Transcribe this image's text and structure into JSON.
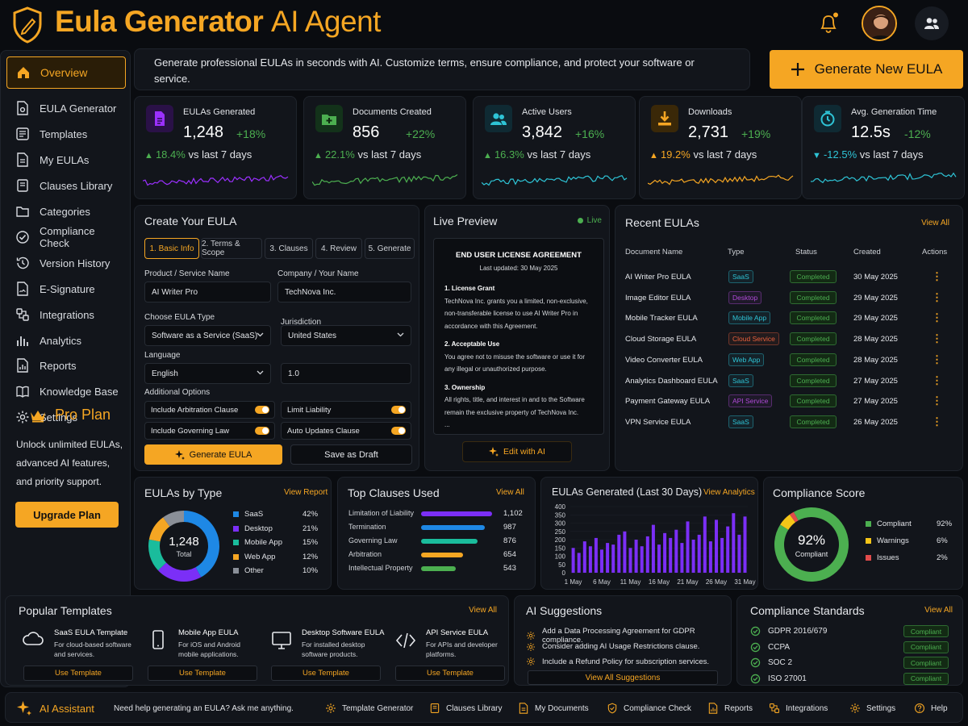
{
  "header": {
    "title_bold": "Eula Generator",
    "title_light": "AI Agent",
    "bell_icon": "bell-icon",
    "users_icon": "users-icon"
  },
  "sidebar": {
    "items": [
      {
        "label": "Overview",
        "icon": "home-icon"
      },
      {
        "label": "EULA Generator",
        "icon": "document-gear-icon"
      },
      {
        "label": "Templates",
        "icon": "templates-icon"
      },
      {
        "label": "My EULAs",
        "icon": "file-icon"
      },
      {
        "label": "Clauses Library",
        "icon": "book-icon"
      },
      {
        "label": "Categories",
        "icon": "folder-icon"
      },
      {
        "label": "Compliance Check",
        "icon": "check-circle-icon"
      },
      {
        "label": "Version History",
        "icon": "history-icon"
      },
      {
        "label": "E-Signature",
        "icon": "signature-icon"
      },
      {
        "label": "Integrations",
        "icon": "integrations-icon"
      },
      {
        "label": "Analytics",
        "icon": "analytics-icon"
      },
      {
        "label": "Reports",
        "icon": "reports-icon"
      },
      {
        "label": "Knowledge Base",
        "icon": "knowledge-icon"
      },
      {
        "label": "Settings",
        "icon": "gear-icon"
      }
    ],
    "pro_plan": {
      "title": "Pro Plan",
      "description": "Unlock unlimited EULAs, advanced AI features, and priority support.",
      "button": "Upgrade Plan"
    }
  },
  "intro": {
    "text": "Generate professional EULAs in seconds with AI. Customize terms, ensure compliance, and protect your software or service.",
    "generate_button": "Generate New EULA"
  },
  "stats": [
    {
      "label": "EULAs Generated",
      "value": "1,248",
      "change": "+18%",
      "trend_pct": "18.4%",
      "trend_text": "vs last 7 days",
      "trend_dir": "up",
      "color": "#9b30ff"
    },
    {
      "label": "Documents Created",
      "value": "856",
      "change": "+22%",
      "trend_pct": "22.1%",
      "trend_text": "vs last 7 days",
      "trend_dir": "up",
      "color": "#4caf50"
    },
    {
      "label": "Active Users",
      "value": "3,842",
      "change": "+16%",
      "trend_pct": "16.3%",
      "trend_text": "vs last 7 days",
      "trend_dir": "up",
      "color": "#2ec4d6"
    },
    {
      "label": "Downloads",
      "value": "2,731",
      "change": "+19%",
      "trend_pct": "19.2%",
      "trend_text": "vs last 7 days",
      "trend_dir": "up",
      "color": "#f5a623"
    },
    {
      "label": "Avg. Generation Time",
      "value": "12.5s",
      "change": "-12%",
      "trend_pct": "-12.5%",
      "trend_text": "vs last 7 days",
      "trend_dir": "down",
      "color": "#2ec4d6"
    }
  ],
  "create": {
    "title": "Create Your EULA",
    "tabs": [
      "1. Basic Info",
      "2. Terms & Scope",
      "3. Clauses",
      "4. Review",
      "5. Generate"
    ],
    "product_label": "Product / Service Name",
    "product_value": "AI Writer Pro",
    "company_label": "Company / Your Name",
    "company_value": "TechNova Inc.",
    "type_label": "Choose EULA Type",
    "type_value": "Software as a Service (SaaS)",
    "jurisdiction_label": "Jurisdiction",
    "jurisdiction_value": "United States",
    "language_label": "Language",
    "language_value": "English",
    "version_value": "1.0",
    "options_label": "Additional Options",
    "options": [
      "Include Arbitration Clause",
      "Limit Liability",
      "Include Governing Law",
      "Auto Updates Clause"
    ],
    "generate_button": "Generate EULA",
    "draft_button": "Save as Draft"
  },
  "preview": {
    "title": "Live Preview",
    "badge": "Live",
    "doc_title": "END USER LICENSE AGREEMENT",
    "doc_updated": "Last updated: 30 May 2025",
    "sections": [
      {
        "head": "1. License Grant",
        "body": "TechNova Inc. grants you a limited, non-exclusive, non-transferable license to use AI Writer Pro in accordance with this Agreement."
      },
      {
        "head": "2. Acceptable Use",
        "body": "You agree not to misuse the software or use it for any illegal or unauthorized purpose."
      },
      {
        "head": "3. Ownership",
        "body": "All rights, title, and interest in and to the Software remain the exclusive property of TechNova Inc."
      }
    ],
    "ellipsis": "...",
    "edit_button": "Edit with AI"
  },
  "recent": {
    "title": "Recent EULAs",
    "view_all": "View All",
    "headers": [
      "Document Name",
      "Type",
      "Status",
      "Created",
      "Actions"
    ],
    "rows": [
      {
        "name": "AI Writer Pro EULA",
        "type": "SaaS",
        "type_color": "#2ec4d6",
        "status": "Completed",
        "date": "30 May 2025"
      },
      {
        "name": "Image Editor EULA",
        "type": "Desktop",
        "type_color": "#b04ad8",
        "status": "Completed",
        "date": "29 May 2025"
      },
      {
        "name": "Mobile Tracker EULA",
        "type": "Mobile App",
        "type_color": "#2ec4d6",
        "status": "Completed",
        "date": "29 May 2025"
      },
      {
        "name": "Cloud Storage EULA",
        "type": "Cloud Service",
        "type_color": "#e8603c",
        "status": "Completed",
        "date": "28 May 2025"
      },
      {
        "name": "Video Converter EULA",
        "type": "Web App",
        "type_color": "#2ec4d6",
        "status": "Completed",
        "date": "28 May 2025"
      },
      {
        "name": "Analytics Dashboard EULA",
        "type": "SaaS",
        "type_color": "#2ec4d6",
        "status": "Completed",
        "date": "27 May 2025"
      },
      {
        "name": "Payment Gateway EULA",
        "type": "API Service",
        "type_color": "#b04ad8",
        "status": "Completed",
        "date": "27 May 2025"
      },
      {
        "name": "VPN Service EULA",
        "type": "SaaS",
        "type_color": "#2ec4d6",
        "status": "Completed",
        "date": "26 May 2025"
      }
    ],
    "action_glyph": "⋮"
  },
  "by_type": {
    "title": "EULAs by Type",
    "link": "View Report",
    "total": "1,248",
    "total_label": "Total"
  },
  "top_clauses": {
    "title": "Top Clauses Used",
    "link": "View All"
  },
  "generated_30": {
    "title": "EULAs Generated (Last 30 Days)",
    "link": "View Analytics"
  },
  "compliance_score": {
    "title": "Compliance Score",
    "value": "92%",
    "label": "Compliant"
  },
  "chart_data": [
    {
      "type": "pie",
      "categories": [
        "SaaS",
        "Desktop",
        "Mobile App",
        "Web App",
        "Other"
      ],
      "values": [
        42,
        21,
        15,
        12,
        10
      ],
      "labels": [
        "42%",
        "21%",
        "15%",
        "12%",
        "10%"
      ],
      "colors": [
        "#1e88e5",
        "#7b2ff7",
        "#1abc9c",
        "#f5a623",
        "#8a8f98"
      ]
    },
    {
      "type": "bar",
      "categories": [
        "Limitation of Liability",
        "Termination",
        "Governing Law",
        "Arbitration",
        "Intellectual Property"
      ],
      "values": [
        1102,
        987,
        876,
        654,
        543
      ],
      "labels": [
        "1,102",
        "987",
        "876",
        "654",
        "543"
      ],
      "colors": [
        "#7b2ff7",
        "#1e88e5",
        "#1abc9c",
        "#f5a623",
        "#4caf50"
      ]
    },
    {
      "type": "bar",
      "x_ticks": [
        "1 May",
        "6 May",
        "11 May",
        "16 May",
        "21 May",
        "26 May",
        "31 May"
      ],
      "y_ticks": [
        "0",
        "50",
        "100",
        "150",
        "200",
        "250",
        "300",
        "350",
        "400"
      ],
      "ylim": [
        0,
        400
      ],
      "values": [
        150,
        120,
        190,
        160,
        210,
        140,
        180,
        170,
        230,
        250,
        150,
        200,
        160,
        220,
        290,
        170,
        240,
        210,
        260,
        180,
        310,
        200,
        230,
        340,
        190,
        320,
        210,
        280,
        360,
        230,
        340
      ],
      "color": "#7b2ff7"
    },
    {
      "type": "pie",
      "categories": [
        "Compliant",
        "Warnings",
        "Issues"
      ],
      "values": [
        92,
        6,
        2
      ],
      "labels": [
        "92%",
        "6%",
        "2%"
      ],
      "colors": [
        "#4caf50",
        "#f5c518",
        "#e14b4b"
      ]
    }
  ],
  "popular": {
    "title": "Popular Templates",
    "view_all": "View All",
    "templates": [
      {
        "name": "SaaS EULA Template",
        "desc": "For cloud-based software and services.",
        "button": "Use Template",
        "icon": "cloud-icon"
      },
      {
        "name": "Mobile App EULA",
        "desc": "For iOS and Android mobile applications.",
        "button": "Use Template",
        "icon": "phone-icon"
      },
      {
        "name": "Desktop Software EULA",
        "desc": "For installed desktop software products.",
        "button": "Use Template",
        "icon": "monitor-icon"
      },
      {
        "name": "API Service EULA",
        "desc": "For APIs and developer platforms.",
        "button": "Use Template",
        "icon": "code-icon"
      }
    ]
  },
  "suggestions": {
    "title": "AI Suggestions",
    "items": [
      "Add a Data Processing Agreement for GDPR compliance.",
      "Consider adding AI Usage Restrictions clause.",
      "Include a Refund Policy for subscription services."
    ],
    "button": "View All Suggestions"
  },
  "standards": {
    "title": "Compliance Standards",
    "view_all": "View All",
    "items": [
      {
        "name": "GDPR 2016/679",
        "status": "Compliant"
      },
      {
        "name": "CCPA",
        "status": "Compliant"
      },
      {
        "name": "SOC 2",
        "status": "Compliant"
      },
      {
        "name": "ISO 27001",
        "status": "Compliant"
      }
    ]
  },
  "bottombar": {
    "assistant": "AI Assistant",
    "help_text": "Need help generating an EULA? Ask me anything.",
    "items": [
      {
        "label": "Template Generator",
        "icon": "gear-icon"
      },
      {
        "label": "Clauses Library",
        "icon": "book-icon"
      },
      {
        "label": "My Documents",
        "icon": "file-icon"
      },
      {
        "label": "Compliance Check",
        "icon": "shield-check-icon"
      },
      {
        "label": "Reports",
        "icon": "reports-icon"
      },
      {
        "label": "Integrations",
        "icon": "integrations-icon"
      },
      {
        "label": "Settings",
        "icon": "gear-icon"
      },
      {
        "label": "Help",
        "icon": "help-icon"
      }
    ]
  }
}
